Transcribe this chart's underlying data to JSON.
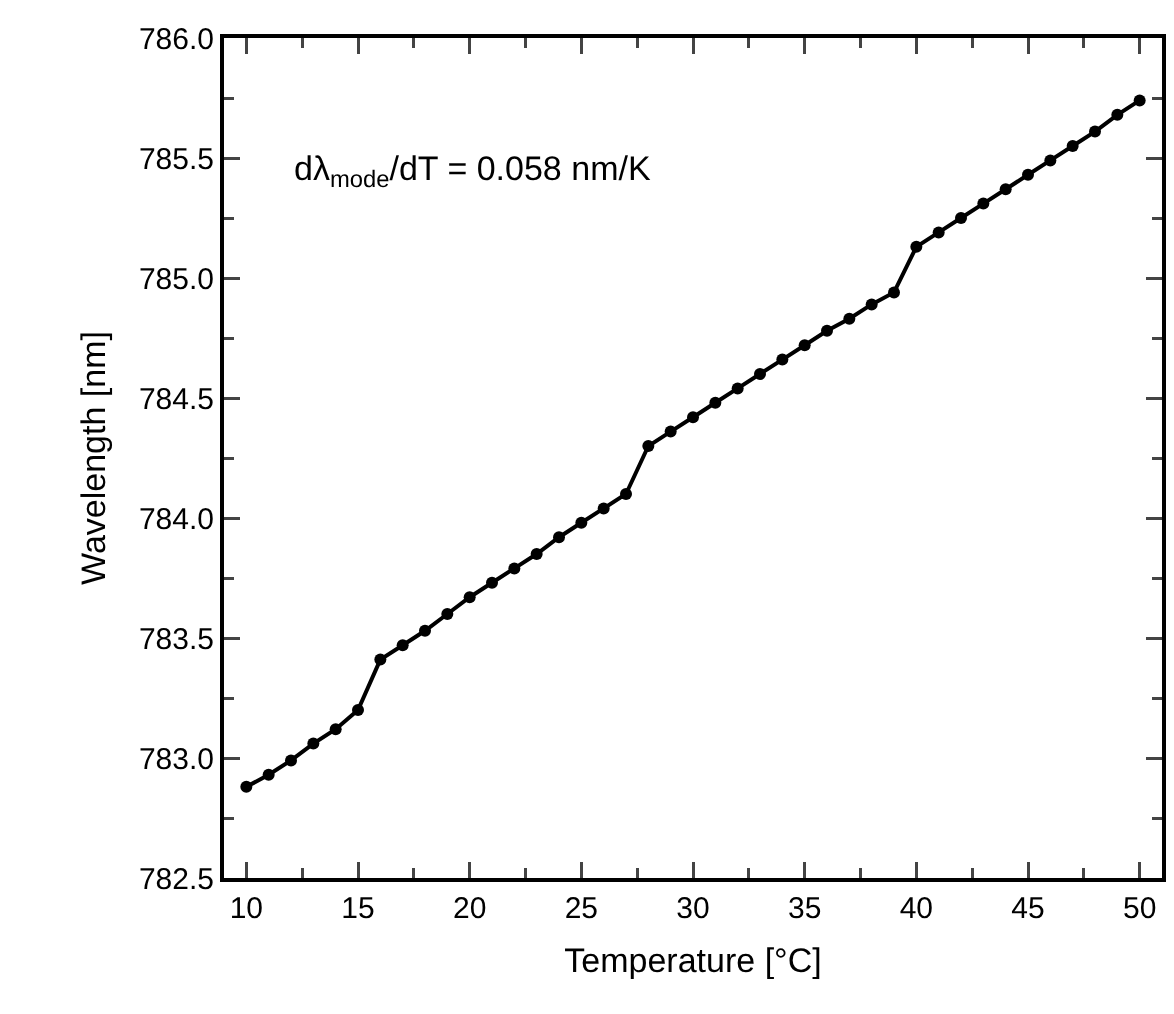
{
  "chart_data": {
    "type": "line",
    "xlabel": "Temperature [°C]",
    "ylabel": "Wavelength [nm]",
    "x": [
      10,
      11,
      12,
      13,
      14,
      15,
      16,
      17,
      18,
      19,
      20,
      21,
      22,
      23,
      24,
      25,
      26,
      27,
      28,
      29,
      30,
      31,
      32,
      33,
      34,
      35,
      36,
      37,
      38,
      39,
      40,
      41,
      42,
      43,
      44,
      45,
      46,
      47,
      48,
      49,
      50
    ],
    "series": [
      {
        "color": "#000000",
        "values": [
          782.88,
          782.93,
          782.99,
          783.06,
          783.12,
          783.2,
          783.41,
          783.47,
          783.53,
          783.6,
          783.67,
          783.73,
          783.79,
          783.85,
          783.92,
          783.98,
          784.04,
          784.1,
          784.3,
          784.36,
          784.42,
          784.48,
          784.54,
          784.6,
          784.66,
          784.72,
          784.78,
          784.83,
          784.89,
          784.94,
          785.13,
          785.19,
          785.25,
          785.31,
          785.37,
          785.43,
          785.49,
          785.55,
          785.61,
          785.68,
          785.74
        ]
      }
    ],
    "xlim": [
      9,
      51
    ],
    "xticks": [
      10,
      {
        "value": 12.5,
        "label": null
      },
      15,
      {
        "value": 17.5,
        "label": null
      },
      20,
      {
        "value": 22.5,
        "label": null
      },
      25,
      {
        "value": 27.5,
        "label": null
      },
      30,
      {
        "value": 32.5,
        "label": null
      },
      35,
      {
        "value": 37.5,
        "label": null
      },
      40,
      {
        "value": 42.5,
        "label": null
      },
      45,
      {
        "value": 47.5,
        "label": null
      },
      50
    ],
    "ylim": [
      782.5,
      786.0
    ],
    "yticks": [
      {
        "value": 782.5,
        "label": "782.5"
      },
      {
        "value": 782.75,
        "label": null
      },
      {
        "value": 783.0,
        "label": "783.0"
      },
      {
        "value": 783.25,
        "label": null
      },
      {
        "value": 783.5,
        "label": "783.5"
      },
      {
        "value": 783.75,
        "label": null
      },
      {
        "value": 784.0,
        "label": "784.0"
      },
      {
        "value": 784.25,
        "label": null
      },
      {
        "value": 784.5,
        "label": "784.5"
      },
      {
        "value": 784.75,
        "label": null
      },
      {
        "value": 785.0,
        "label": "785.0"
      },
      {
        "value": 785.25,
        "label": null
      },
      {
        "value": 785.5,
        "label": "785.5"
      },
      {
        "value": 785.75,
        "label": null
      },
      {
        "value": 786.0,
        "label": "786.0"
      }
    ],
    "annotations": [
      "dλ$_{mode}$/dT = 0.058 nm/K"
    ],
    "marker": "circle",
    "line_style": "solid"
  }
}
